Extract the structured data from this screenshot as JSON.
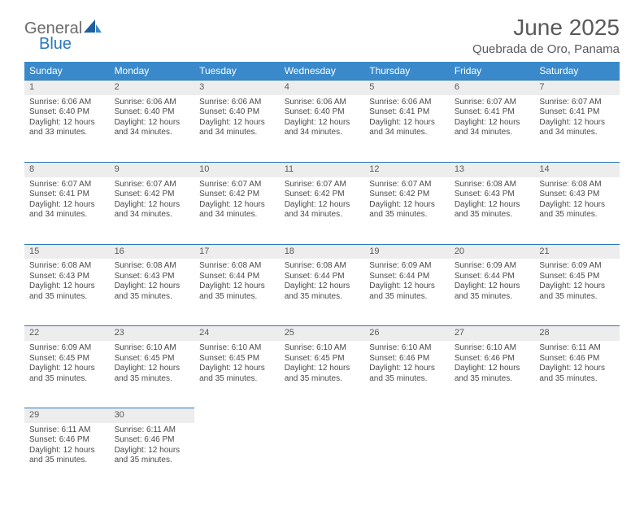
{
  "logo": {
    "part1": "General",
    "part2": "Blue"
  },
  "title": "June 2025",
  "location": "Quebrada de Oro, Panama",
  "colors": {
    "header_bg": "#3a8acb",
    "header_text": "#ffffff",
    "daynum_bg": "#ededed",
    "rule": "#2a78bf",
    "body_text": "#4a4a4a",
    "title_text": "#5a5a5a",
    "logo_gray": "#6b6b6b",
    "logo_blue": "#2a78bf"
  },
  "weekdays": [
    "Sunday",
    "Monday",
    "Tuesday",
    "Wednesday",
    "Thursday",
    "Friday",
    "Saturday"
  ],
  "weeks": [
    [
      {
        "n": "1",
        "sr": "Sunrise: 6:06 AM",
        "ss": "Sunset: 6:40 PM",
        "dl": "Daylight: 12 hours and 33 minutes."
      },
      {
        "n": "2",
        "sr": "Sunrise: 6:06 AM",
        "ss": "Sunset: 6:40 PM",
        "dl": "Daylight: 12 hours and 34 minutes."
      },
      {
        "n": "3",
        "sr": "Sunrise: 6:06 AM",
        "ss": "Sunset: 6:40 PM",
        "dl": "Daylight: 12 hours and 34 minutes."
      },
      {
        "n": "4",
        "sr": "Sunrise: 6:06 AM",
        "ss": "Sunset: 6:40 PM",
        "dl": "Daylight: 12 hours and 34 minutes."
      },
      {
        "n": "5",
        "sr": "Sunrise: 6:06 AM",
        "ss": "Sunset: 6:41 PM",
        "dl": "Daylight: 12 hours and 34 minutes."
      },
      {
        "n": "6",
        "sr": "Sunrise: 6:07 AM",
        "ss": "Sunset: 6:41 PM",
        "dl": "Daylight: 12 hours and 34 minutes."
      },
      {
        "n": "7",
        "sr": "Sunrise: 6:07 AM",
        "ss": "Sunset: 6:41 PM",
        "dl": "Daylight: 12 hours and 34 minutes."
      }
    ],
    [
      {
        "n": "8",
        "sr": "Sunrise: 6:07 AM",
        "ss": "Sunset: 6:41 PM",
        "dl": "Daylight: 12 hours and 34 minutes."
      },
      {
        "n": "9",
        "sr": "Sunrise: 6:07 AM",
        "ss": "Sunset: 6:42 PM",
        "dl": "Daylight: 12 hours and 34 minutes."
      },
      {
        "n": "10",
        "sr": "Sunrise: 6:07 AM",
        "ss": "Sunset: 6:42 PM",
        "dl": "Daylight: 12 hours and 34 minutes."
      },
      {
        "n": "11",
        "sr": "Sunrise: 6:07 AM",
        "ss": "Sunset: 6:42 PM",
        "dl": "Daylight: 12 hours and 34 minutes."
      },
      {
        "n": "12",
        "sr": "Sunrise: 6:07 AM",
        "ss": "Sunset: 6:42 PM",
        "dl": "Daylight: 12 hours and 35 minutes."
      },
      {
        "n": "13",
        "sr": "Sunrise: 6:08 AM",
        "ss": "Sunset: 6:43 PM",
        "dl": "Daylight: 12 hours and 35 minutes."
      },
      {
        "n": "14",
        "sr": "Sunrise: 6:08 AM",
        "ss": "Sunset: 6:43 PM",
        "dl": "Daylight: 12 hours and 35 minutes."
      }
    ],
    [
      {
        "n": "15",
        "sr": "Sunrise: 6:08 AM",
        "ss": "Sunset: 6:43 PM",
        "dl": "Daylight: 12 hours and 35 minutes."
      },
      {
        "n": "16",
        "sr": "Sunrise: 6:08 AM",
        "ss": "Sunset: 6:43 PM",
        "dl": "Daylight: 12 hours and 35 minutes."
      },
      {
        "n": "17",
        "sr": "Sunrise: 6:08 AM",
        "ss": "Sunset: 6:44 PM",
        "dl": "Daylight: 12 hours and 35 minutes."
      },
      {
        "n": "18",
        "sr": "Sunrise: 6:08 AM",
        "ss": "Sunset: 6:44 PM",
        "dl": "Daylight: 12 hours and 35 minutes."
      },
      {
        "n": "19",
        "sr": "Sunrise: 6:09 AM",
        "ss": "Sunset: 6:44 PM",
        "dl": "Daylight: 12 hours and 35 minutes."
      },
      {
        "n": "20",
        "sr": "Sunrise: 6:09 AM",
        "ss": "Sunset: 6:44 PM",
        "dl": "Daylight: 12 hours and 35 minutes."
      },
      {
        "n": "21",
        "sr": "Sunrise: 6:09 AM",
        "ss": "Sunset: 6:45 PM",
        "dl": "Daylight: 12 hours and 35 minutes."
      }
    ],
    [
      {
        "n": "22",
        "sr": "Sunrise: 6:09 AM",
        "ss": "Sunset: 6:45 PM",
        "dl": "Daylight: 12 hours and 35 minutes."
      },
      {
        "n": "23",
        "sr": "Sunrise: 6:10 AM",
        "ss": "Sunset: 6:45 PM",
        "dl": "Daylight: 12 hours and 35 minutes."
      },
      {
        "n": "24",
        "sr": "Sunrise: 6:10 AM",
        "ss": "Sunset: 6:45 PM",
        "dl": "Daylight: 12 hours and 35 minutes."
      },
      {
        "n": "25",
        "sr": "Sunrise: 6:10 AM",
        "ss": "Sunset: 6:45 PM",
        "dl": "Daylight: 12 hours and 35 minutes."
      },
      {
        "n": "26",
        "sr": "Sunrise: 6:10 AM",
        "ss": "Sunset: 6:46 PM",
        "dl": "Daylight: 12 hours and 35 minutes."
      },
      {
        "n": "27",
        "sr": "Sunrise: 6:10 AM",
        "ss": "Sunset: 6:46 PM",
        "dl": "Daylight: 12 hours and 35 minutes."
      },
      {
        "n": "28",
        "sr": "Sunrise: 6:11 AM",
        "ss": "Sunset: 6:46 PM",
        "dl": "Daylight: 12 hours and 35 minutes."
      }
    ],
    [
      {
        "n": "29",
        "sr": "Sunrise: 6:11 AM",
        "ss": "Sunset: 6:46 PM",
        "dl": "Daylight: 12 hours and 35 minutes."
      },
      {
        "n": "30",
        "sr": "Sunrise: 6:11 AM",
        "ss": "Sunset: 6:46 PM",
        "dl": "Daylight: 12 hours and 35 minutes."
      },
      null,
      null,
      null,
      null,
      null
    ]
  ]
}
